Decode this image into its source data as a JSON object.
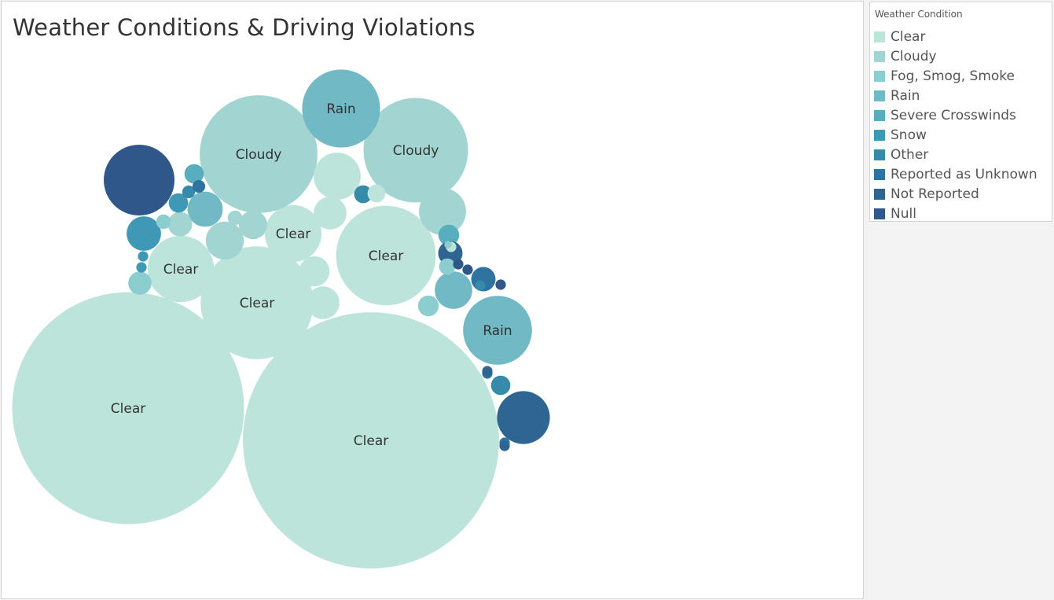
{
  "title": "Weather Conditions & Driving Violations",
  "legend": {
    "title": "Weather Condition",
    "items": [
      {
        "label": "Clear",
        "color": "#bde4da"
      },
      {
        "label": "Cloudy",
        "color": "#a2d5d1"
      },
      {
        "label": "Fog, Smog, Smoke",
        "color": "#8ccdcf"
      },
      {
        "label": "Rain",
        "color": "#71b9c4"
      },
      {
        "label": "Severe Crosswinds",
        "color": "#58aebf"
      },
      {
        "label": "Snow",
        "color": "#3e98b6"
      },
      {
        "label": "Other",
        "color": "#368aaa"
      },
      {
        "label": "Reported as Unknown",
        "color": "#2f74a0"
      },
      {
        "label": "Not Reported",
        "color": "#2f6691"
      },
      {
        "label": "Null",
        "color": "#2f578a"
      }
    ]
  },
  "chart_data": {
    "type": "bubble",
    "color_field": "Weather Condition",
    "size_encoding": "count of driving violations (relative, unlabeled)",
    "bubbles": [
      {
        "category": "Clear",
        "label": "Clear",
        "size": 1.0
      },
      {
        "category": "Clear",
        "label": "Clear",
        "size": 1.22
      },
      {
        "category": "Clear",
        "label": "Clear",
        "size": 0.236
      },
      {
        "category": "Clear",
        "label": "Clear",
        "size": 0.185
      },
      {
        "category": "Clear",
        "label": "Clear",
        "size": 0.082
      },
      {
        "category": "Clear",
        "label": "Clear",
        "size": 0.06
      },
      {
        "category": "Cloudy",
        "label": "Cloudy",
        "size": 0.258
      },
      {
        "category": "Cloudy",
        "label": "Cloudy",
        "size": 0.203
      },
      {
        "category": "Rain",
        "label": "Rain",
        "size": 0.113
      },
      {
        "category": "Rain",
        "label": "Rain",
        "size": 0.088
      },
      {
        "category": "Null",
        "label": "",
        "size": 0.093
      },
      {
        "category": "Not Reported",
        "label": "",
        "size": 0.052
      },
      {
        "category": "Clear",
        "label": "",
        "size": 0.041
      },
      {
        "category": "Cloudy",
        "label": "",
        "size": 0.041
      },
      {
        "category": "Clear",
        "label": "",
        "size": 0.02
      },
      {
        "category": "Clear",
        "label": "",
        "size": 0.02
      },
      {
        "category": "Clear",
        "label": "",
        "size": 0.017
      },
      {
        "category": "Cloudy",
        "label": "",
        "size": 0.027
      },
      {
        "category": "Rain",
        "label": "",
        "size": 0.023
      },
      {
        "category": "Rain",
        "label": "",
        "size": 0.026
      },
      {
        "category": "Snow",
        "label": "",
        "size": 0.022
      },
      {
        "category": "Cloudy",
        "label": "",
        "size": 0.015
      },
      {
        "category": "Cloudy",
        "label": "",
        "size": 0.011
      },
      {
        "category": "Fog, Smog, Smoke",
        "label": "",
        "size": 0.01
      },
      {
        "category": "Fog, Smog, Smoke",
        "label": "",
        "size": 0.008
      },
      {
        "category": "Severe Crosswinds",
        "label": "",
        "size": 0.008
      },
      {
        "category": "Other",
        "label": "",
        "size": 0.007
      },
      {
        "category": "Reported as Unknown",
        "label": "",
        "size": 0.011
      },
      {
        "category": "Not Reported",
        "label": "",
        "size": 0.011
      },
      {
        "category": "Snow",
        "label": "",
        "size": 0.007
      },
      {
        "category": "Other",
        "label": "",
        "size": 0.006
      },
      {
        "category": "Severe Crosswinds",
        "label": "",
        "size": 0.007
      },
      {
        "category": "Clear",
        "label": "",
        "size": 0.006
      },
      {
        "category": "Cloudy",
        "label": "",
        "size": 0.004
      },
      {
        "category": "Fog, Smog, Smoke",
        "label": "",
        "size": 0.005
      },
      {
        "category": "Fog, Smog, Smoke",
        "label": "",
        "size": 0.004
      },
      {
        "category": "Other",
        "label": "",
        "size": 0.003
      },
      {
        "category": "Reported as Unknown",
        "label": "",
        "size": 0.003
      },
      {
        "category": "Null",
        "label": "",
        "size": 0.002
      },
      {
        "category": "Null",
        "label": "",
        "size": 0.002
      },
      {
        "category": "Reported as Unknown",
        "label": "",
        "size": 0.002
      },
      {
        "category": "Reported as Unknown",
        "label": "",
        "size": 0.002
      },
      {
        "category": "Null",
        "label": "",
        "size": 0.002
      },
      {
        "category": "Snow",
        "label": "",
        "size": 0.002
      },
      {
        "category": "Snow",
        "label": "",
        "size": 0.002
      },
      {
        "category": "Other",
        "label": "",
        "size": 0.002
      },
      {
        "category": "Not Reported",
        "label": "",
        "size": 0.002
      },
      {
        "category": "Not Reported",
        "label": "",
        "size": 0.002
      },
      {
        "category": "Clear",
        "label": "",
        "size": 0.002
      },
      {
        "category": "Fog, Smog, Smoke",
        "label": "",
        "size": 0.001
      }
    ]
  }
}
